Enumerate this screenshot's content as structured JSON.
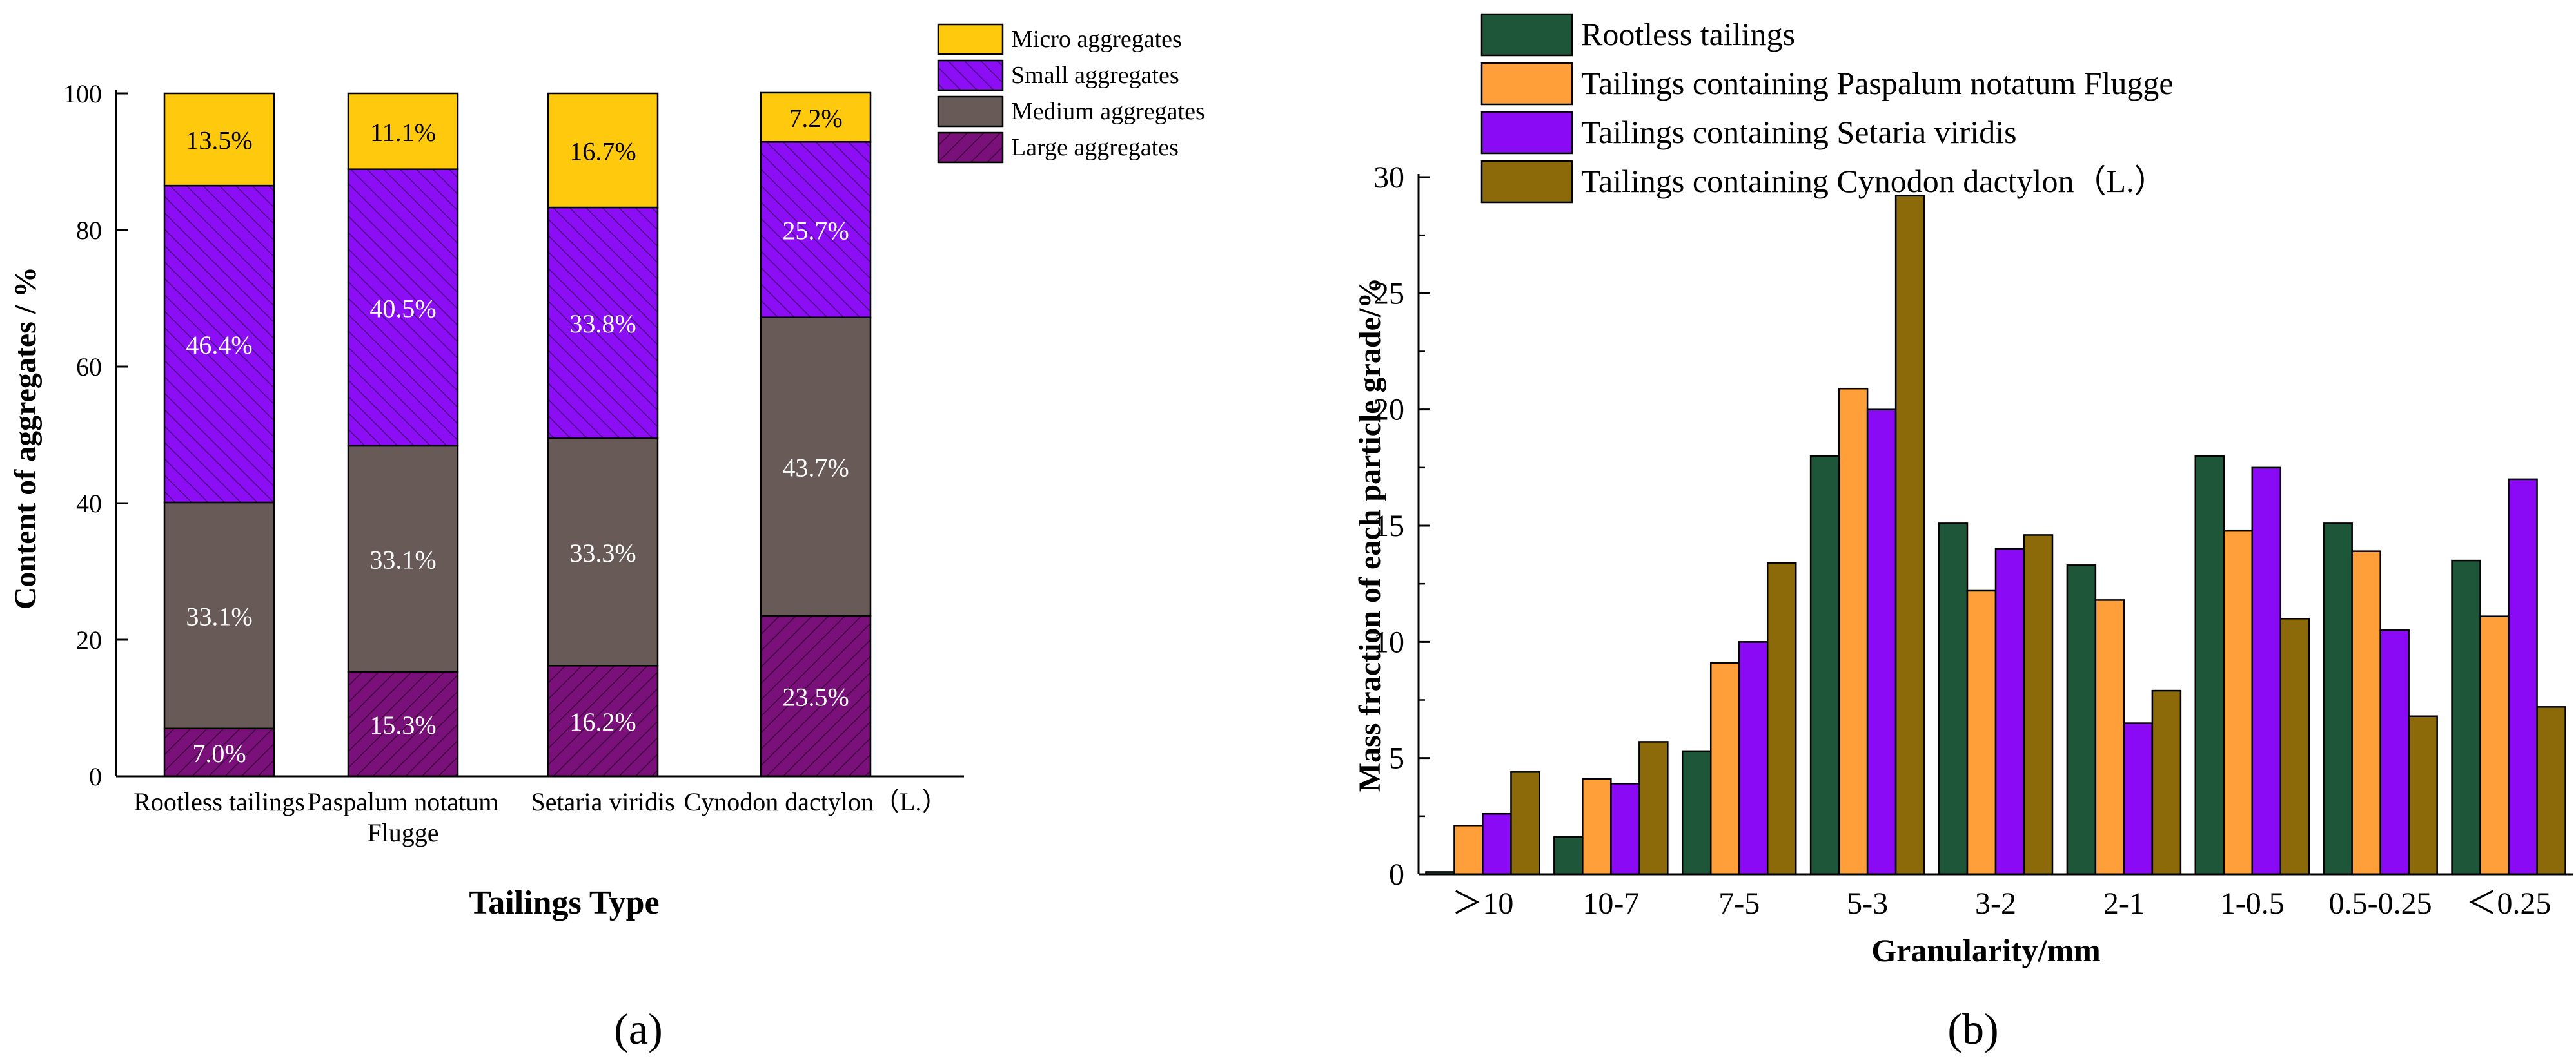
{
  "figure": {
    "panel_a_caption": "(a)",
    "panel_b_caption": "(b)"
  },
  "colors": {
    "micro": "#FFC90E",
    "small": "#8B0EF5",
    "medium": "#685A56",
    "large": "#7A1079",
    "rootless": "#1D5638",
    "paspalum": "#FF9F3A",
    "setaria": "#8A0AF5",
    "cynodon": "#8C6A0A"
  },
  "chart_data": [
    {
      "id": "a",
      "type": "bar",
      "stacked": true,
      "categories": [
        "Rootless tailings",
        "Paspalum notatum Flugge",
        "Setaria viridis",
        "Cynodon dactylon（L.）"
      ],
      "category_lines": [
        [
          "Rootless tailings"
        ],
        [
          "Paspalum notatum",
          "Flugge"
        ],
        [
          "Setaria viridis"
        ],
        [
          "Cynodon dactylon（L.）"
        ]
      ],
      "series": [
        {
          "name": "Large aggregates",
          "color_key": "large",
          "values": [
            7.0,
            15.3,
            16.2,
            23.5
          ],
          "labels": [
            "7.0%",
            "15.3%",
            "16.2%",
            "23.5%"
          ]
        },
        {
          "name": "Medium aggregates",
          "color_key": "medium",
          "values": [
            33.1,
            33.1,
            33.3,
            43.7
          ],
          "labels": [
            "33.1%",
            "33.1%",
            "33.3%",
            "43.7%"
          ]
        },
        {
          "name": "Small aggregates",
          "color_key": "small",
          "values": [
            46.4,
            40.5,
            33.8,
            25.7
          ],
          "labels": [
            "46.4%",
            "40.5%",
            "33.8%",
            "25.7%"
          ]
        },
        {
          "name": "Micro aggregates",
          "color_key": "micro",
          "values": [
            13.5,
            11.1,
            16.7,
            7.2
          ],
          "labels": [
            "13.5%",
            "11.1%",
            "16.7%",
            "7.2%"
          ]
        }
      ],
      "legend_order": [
        "Micro aggregates",
        "Small aggregates",
        "Medium aggregates",
        "Large aggregates"
      ],
      "legend_position": "top-right",
      "xlabel": "Tailings Type",
      "ylabel": "Content of aggregates / %",
      "ylim": [
        0,
        100
      ],
      "yticks": [
        0,
        20,
        40,
        60,
        80,
        100
      ]
    },
    {
      "id": "b",
      "type": "bar",
      "stacked": false,
      "categories": [
        ">10",
        "10-7",
        "7-5",
        "5-3",
        "3-2",
        "2-1",
        "1-0.5",
        "0.5-0.25",
        "<0.25"
      ],
      "category_labels": [
        "＞10",
        "10-7",
        "7-5",
        "5-3",
        "3-2",
        "2-1",
        "1-0.5",
        "0.5-0.25",
        "＜0.25"
      ],
      "series": [
        {
          "name": "Rootless tailings",
          "color_key": "rootless",
          "values": [
            0.1,
            1.6,
            5.3,
            18.0,
            15.1,
            13.3,
            18.0,
            15.1,
            13.5
          ]
        },
        {
          "name": "Tailings containing Paspalum notatum Flugge",
          "color_key": "paspalum",
          "values": [
            2.1,
            4.1,
            9.1,
            20.9,
            12.2,
            11.8,
            14.8,
            13.9,
            11.1
          ]
        },
        {
          "name": "Tailings containing Setaria viridis",
          "color_key": "setaria",
          "values": [
            2.6,
            3.9,
            10.0,
            20.0,
            14.0,
            6.5,
            17.5,
            10.5,
            17.0
          ]
        },
        {
          "name": "Tailings containing Cynodon dactylon（L.）",
          "color_key": "cynodon",
          "values": [
            4.4,
            5.7,
            13.4,
            29.2,
            14.6,
            7.9,
            11.0,
            6.8,
            7.2
          ]
        }
      ],
      "legend_position": "top-left",
      "xlabel": "Granularity/mm",
      "ylabel": "Mass fraction of each particle grade/%",
      "ylim": [
        0,
        30
      ],
      "yticks": [
        0,
        5,
        10,
        15,
        20,
        25,
        30
      ]
    }
  ]
}
